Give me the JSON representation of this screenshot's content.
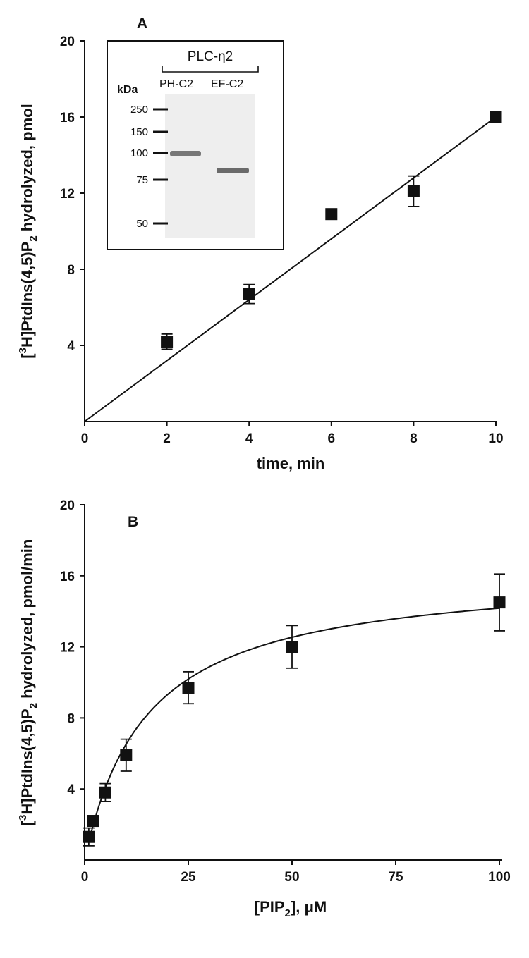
{
  "chart_data": [
    {
      "panel_label": "A",
      "type": "scatter",
      "xlabel": "time, min",
      "ylabel_parts": {
        "open": "[",
        "sup": "3",
        "mid": "H]PtdIns(4,5)P",
        "sub": "2",
        "end": " hydrolyzed, pmol"
      },
      "xlim": [
        0,
        10
      ],
      "ylim": [
        0,
        20
      ],
      "xticks": [
        "0",
        "2",
        "4",
        "6",
        "8",
        "10"
      ],
      "yticks": [
        "4",
        "8",
        "12",
        "16",
        "20"
      ],
      "x": [
        2,
        4,
        6,
        8,
        10
      ],
      "y": [
        4.2,
        6.7,
        10.9,
        12.1,
        16.0
      ],
      "yerr": [
        0.4,
        0.5,
        0.2,
        0.8,
        0.2
      ],
      "fit": {
        "type": "linear",
        "slope": 1.6,
        "intercept": 0
      },
      "inset": {
        "title": "PLC-η2",
        "lanes": [
          "PH-C2",
          "EF-C2"
        ],
        "unit_label": "kDa",
        "markers": [
          "250",
          "150",
          "100",
          "75",
          "50"
        ]
      }
    },
    {
      "panel_label": "B",
      "type": "scatter",
      "xlabel_parts": {
        "pre": "[PIP",
        "sub": "2",
        "post": "], μM"
      },
      "ylabel_parts": {
        "open": "[",
        "sup": "3",
        "mid": "H]PtdIns(4,5)P",
        "sub": "2",
        "end": " hydrolyzed, pmol/min"
      },
      "xlim": [
        0,
        100
      ],
      "ylim": [
        0,
        20
      ],
      "xticks": [
        "0",
        "25",
        "50",
        "75",
        "100"
      ],
      "yticks": [
        "4",
        "8",
        "12",
        "16",
        "20"
      ],
      "x": [
        1,
        2,
        5,
        10,
        25,
        50,
        100
      ],
      "y": [
        1.3,
        2.2,
        3.8,
        5.9,
        9.7,
        12.0,
        14.5
      ],
      "yerr": [
        0.5,
        0.3,
        0.5,
        0.9,
        0.9,
        1.2,
        1.6
      ],
      "fit": {
        "type": "michaelis-menten",
        "vmax": 16.3,
        "km": 15
      }
    }
  ]
}
